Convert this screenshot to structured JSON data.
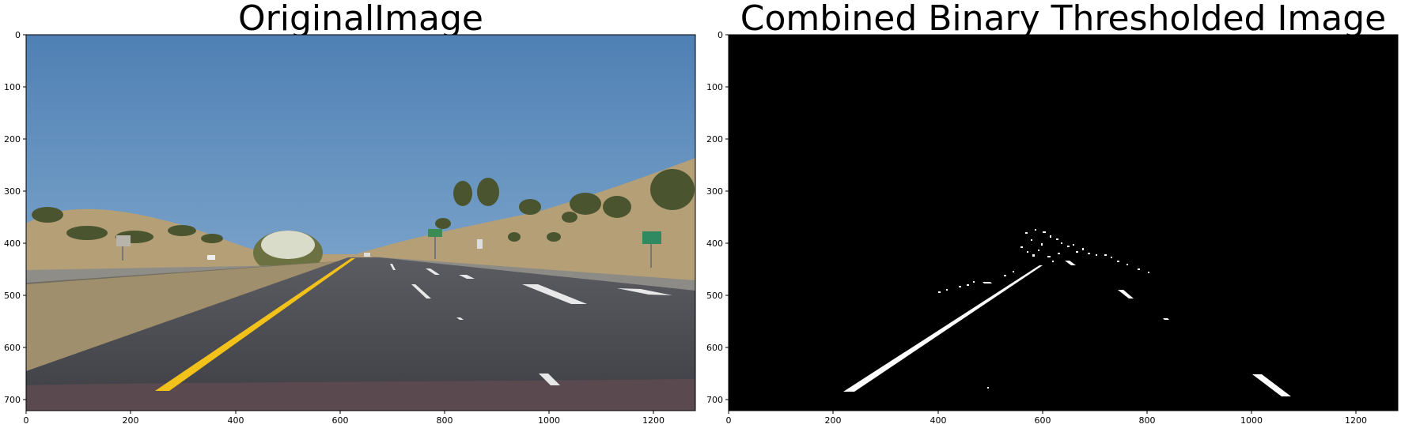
{
  "panels": [
    {
      "title": "OriginalImage",
      "x_ticks": [
        "0",
        "200",
        "400",
        "600",
        "800",
        "1000",
        "1200"
      ],
      "y_ticks": [
        "0",
        "100",
        "200",
        "300",
        "400",
        "500",
        "600",
        "700"
      ]
    },
    {
      "title": "Combined Binary Thresholded Image",
      "x_ticks": [
        "0",
        "200",
        "400",
        "600",
        "800",
        "1000",
        "1200"
      ],
      "y_ticks": [
        "0",
        "100",
        "200",
        "300",
        "400",
        "500",
        "600",
        "700"
      ]
    }
  ],
  "image": {
    "width": 1280,
    "height": 720
  },
  "colors": {
    "sky_top": "#5585b8",
    "sky_bottom": "#8cb2d4",
    "road": "#4a4b52",
    "hill": "#b8a27a",
    "shoulder": "#8a8a86",
    "yellow_line": "#f2c21a",
    "vegetation": "#4f5a32",
    "binary_bg": "#000000",
    "binary_fg": "#ffffff"
  }
}
